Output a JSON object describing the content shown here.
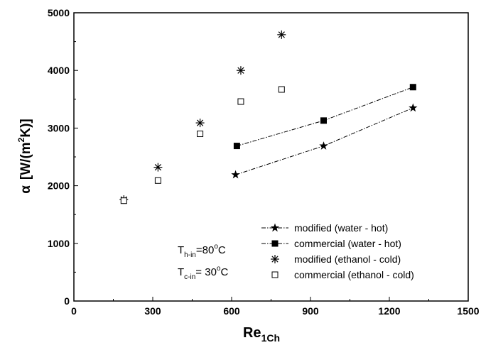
{
  "chart_data": {
    "type": "scatter",
    "xlabel_main": "Re",
    "xlabel_sub": "1Ch",
    "ylabel_main": "α",
    "ylabel_unit_a": "[W/(m",
    "ylabel_unit_sup": "2",
    "ylabel_unit_b": "K)]",
    "xlim": [
      0,
      1500
    ],
    "ylim": [
      0,
      5000
    ],
    "xticks": [
      0,
      300,
      600,
      900,
      1200,
      1500
    ],
    "yticks": [
      0,
      1000,
      2000,
      3000,
      4000,
      5000
    ],
    "legend_position": "bottom-right",
    "series": [
      {
        "name": "modified (water - hot)",
        "marker": "filled-star",
        "line": "dash-dot",
        "x": [
          615,
          950,
          1290
        ],
        "y": [
          2190,
          2690,
          3350
        ]
      },
      {
        "name": "commercial (water - hot)",
        "marker": "filled-square",
        "line": "dash-dot",
        "x": [
          620,
          950,
          1290
        ],
        "y": [
          2690,
          3130,
          3710
        ]
      },
      {
        "name": "modified (ethanol - cold)",
        "marker": "asterisk",
        "line": "none",
        "x": [
          190,
          320,
          480,
          635,
          790
        ],
        "y": [
          1760,
          2320,
          3090,
          4000,
          4620
        ]
      },
      {
        "name": "commercial (ethanol - cold)",
        "marker": "open-square",
        "line": "none",
        "x": [
          190,
          320,
          480,
          635,
          790
        ],
        "y": [
          1740,
          2090,
          2900,
          3460,
          3670
        ]
      }
    ],
    "annotations": [
      {
        "main": "T",
        "sub": "h-in",
        "rest": "=80",
        "deg": "o",
        "unit": "C"
      },
      {
        "main": "T",
        "sub": "c-in",
        "rest": "= 30",
        "deg": "o",
        "unit": "C"
      }
    ]
  }
}
